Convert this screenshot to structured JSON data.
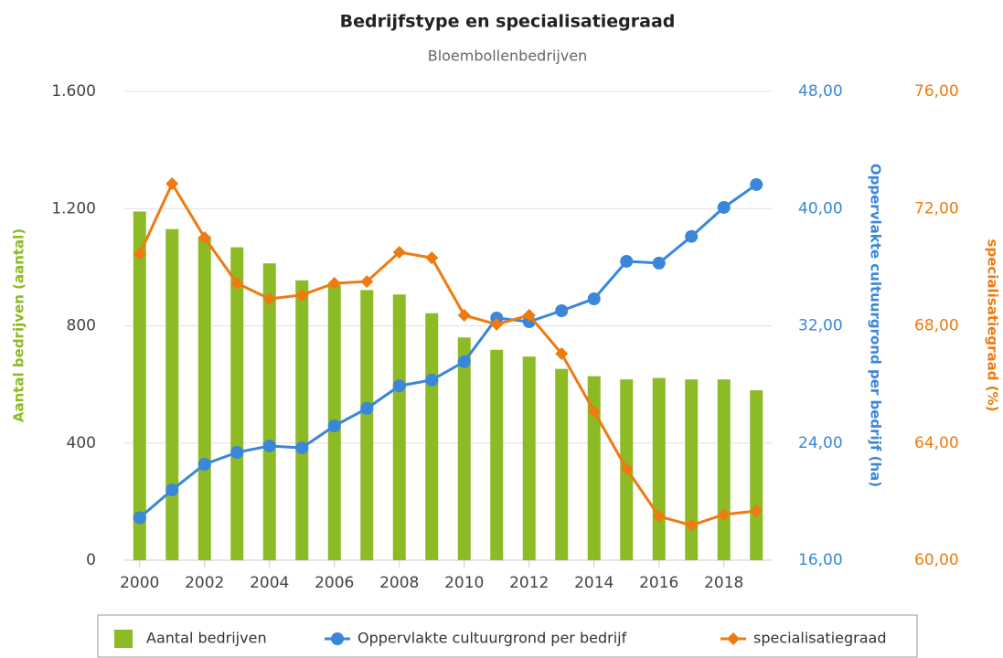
{
  "chart_data": {
    "type": "bar-line",
    "title": "Bedrijfstype en specialisatiegraad",
    "subtitle": "Bloembollenbedrijven",
    "x": [
      2000,
      2001,
      2002,
      2003,
      2004,
      2005,
      2006,
      2007,
      2008,
      2009,
      2010,
      2011,
      2012,
      2013,
      2014,
      2015,
      2016,
      2017,
      2018,
      2019
    ],
    "xlim": [
      1999.5,
      2019.5
    ],
    "xticks": [
      2000,
      2002,
      2004,
      2006,
      2008,
      2010,
      2012,
      2014,
      2016,
      2018
    ],
    "ylabel": "Aantal bedrijven (aantal)",
    "ylim": [
      0,
      1600
    ],
    "yticks": [
      0,
      400,
      800,
      {
        "value": 1200,
        "label": "1.200"
      },
      {
        "value": 1600,
        "label": "1.600"
      }
    ],
    "y2label": "Oppervlakte cultuurgrond per bedrijf (ha)",
    "y2lim": [
      16,
      48
    ],
    "y2ticks": [
      {
        "value": 16,
        "label": "16,00"
      },
      {
        "value": 24,
        "label": "24,00"
      },
      {
        "value": 32,
        "label": "32,00"
      },
      {
        "value": 40,
        "label": "40,00"
      },
      {
        "value": 48,
        "label": "48,00"
      }
    ],
    "y3label": "specialisatiegraad (%)",
    "y3lim": [
      60,
      76
    ],
    "y3ticks": [
      {
        "value": 60,
        "label": "60,00"
      },
      {
        "value": 64,
        "label": "64,00"
      },
      {
        "value": 68,
        "label": "68,00"
      },
      {
        "value": 72,
        "label": "72,00"
      },
      {
        "value": 76,
        "label": "76,00"
      }
    ],
    "grid": true,
    "legend": "bottom",
    "series": [
      {
        "name": "Aantal bedrijven",
        "type": "bar",
        "color": "#8cbb26",
        "axis": "y",
        "values": [
          1190,
          1130,
          1105,
          1068,
          1013,
          955,
          940,
          922,
          907,
          843,
          760,
          718,
          695,
          653,
          628,
          617,
          622,
          617,
          617,
          580
        ]
      },
      {
        "name": "Oppervlakte cultuurgrond per bedrijf",
        "type": "line",
        "marker": "circle",
        "color": "#3a86d9",
        "axis": "y2",
        "values": [
          18.9,
          20.8,
          22.55,
          23.36,
          23.8,
          23.67,
          25.17,
          26.36,
          27.9,
          28.3,
          29.55,
          32.53,
          32.28,
          33.03,
          33.84,
          36.4,
          36.28,
          38.1,
          40.08,
          41.64
        ]
      },
      {
        "name": "specialisatiegraad",
        "type": "line",
        "marker": "diamond",
        "color": "#ee7a11",
        "axis": "y3",
        "values": [
          70.45,
          72.85,
          71.01,
          69.45,
          68.92,
          69.05,
          69.45,
          69.51,
          70.51,
          70.32,
          68.36,
          68.05,
          68.36,
          67.05,
          65.08,
          63.12,
          61.5,
          61.19,
          61.56,
          61.68
        ]
      }
    ]
  }
}
